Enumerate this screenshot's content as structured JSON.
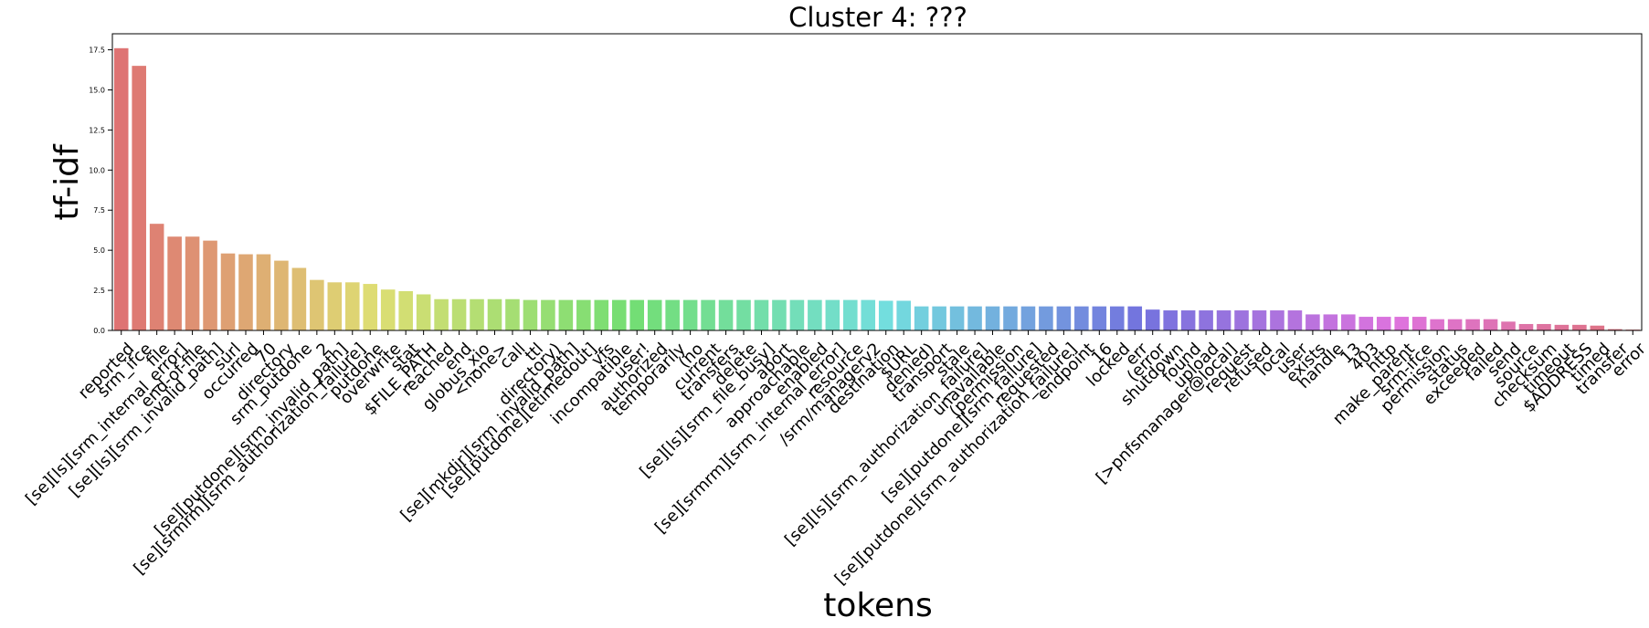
{
  "chart_data": {
    "type": "bar",
    "title": "Cluster 4: ???",
    "xlabel": "tokens",
    "ylabel": "tf-idf",
    "ylim": [
      0,
      18.5
    ],
    "yticks": [
      "0.0",
      "2.5",
      "5.0",
      "7.5",
      "10.0",
      "12.5",
      "15.0",
      "17.5"
    ],
    "grid": false,
    "legend": "none",
    "palette": "husl",
    "categories": [
      "reported",
      "srm_ifce",
      "file",
      "[se][ls][srm_internal_error]",
      "end-of-file",
      "[se][ls][srm_invalid_path]",
      "surl",
      "occurred",
      "70",
      "directory",
      "srm_putdone",
      "2",
      "[se][putdone][srm_invalid_path]",
      "[se][srmrm][srm_authorization_failure]",
      "putdone",
      "overwrite",
      "stat",
      "$FILE_PATH",
      "reached",
      "end",
      "globus_xio",
      "<none>",
      "call",
      "ttl",
      "directory)",
      "[se][mkdir][srm_invalid_path]",
      "[se][putdone][etimedout]",
      "vfs",
      "incompatible",
      "user!",
      "authorized",
      "temporarily",
      "(no",
      "current",
      "transfers",
      "delete",
      "[se][ls][srm_file_busy]",
      "abort",
      "approachable",
      "enabled",
      "[se][srmrm][srm_internal_error]",
      "resource",
      "/srm/managerv2",
      "destination",
      "$URL",
      "denied)",
      "transport",
      "stale",
      "[se][ls][srm_authorization_failure]",
      "unavailable",
      "(permission",
      "[se][putdone][srm_failure]",
      "requested",
      "[se][putdone][srm_authorization_failure]",
      "endpoint",
      "16",
      "locked",
      "err",
      "(error",
      "shutdown",
      "found",
      "upload",
      "[>pnfsmanager@local]",
      "request",
      "refused",
      "local",
      "user",
      "exists",
      "handle",
      "13",
      "403",
      "http",
      "make_parent",
      "srm-ifce",
      "permission",
      "status",
      "exceeded",
      "failed",
      "send",
      "source",
      "checksum",
      "timeout",
      "$ADDRESS",
      "timed",
      "transfer",
      "error"
    ],
    "values": [
      17.6,
      16.5,
      6.65,
      5.85,
      5.85,
      5.6,
      4.8,
      4.75,
      4.75,
      4.35,
      3.9,
      3.15,
      3.0,
      3.0,
      2.9,
      2.55,
      2.45,
      2.25,
      1.95,
      1.95,
      1.95,
      1.95,
      1.95,
      1.9,
      1.9,
      1.9,
      1.9,
      1.9,
      1.9,
      1.9,
      1.9,
      1.9,
      1.9,
      1.9,
      1.9,
      1.9,
      1.9,
      1.9,
      1.9,
      1.9,
      1.9,
      1.9,
      1.9,
      1.85,
      1.85,
      1.5,
      1.5,
      1.5,
      1.5,
      1.5,
      1.5,
      1.5,
      1.5,
      1.5,
      1.5,
      1.5,
      1.5,
      1.5,
      1.3,
      1.25,
      1.25,
      1.25,
      1.25,
      1.25,
      1.25,
      1.25,
      1.25,
      1.0,
      1.0,
      1.0,
      0.85,
      0.85,
      0.85,
      0.85,
      0.7,
      0.7,
      0.7,
      0.7,
      0.55,
      0.4,
      0.4,
      0.35,
      0.35,
      0.3,
      0.08,
      0.05
    ]
  }
}
